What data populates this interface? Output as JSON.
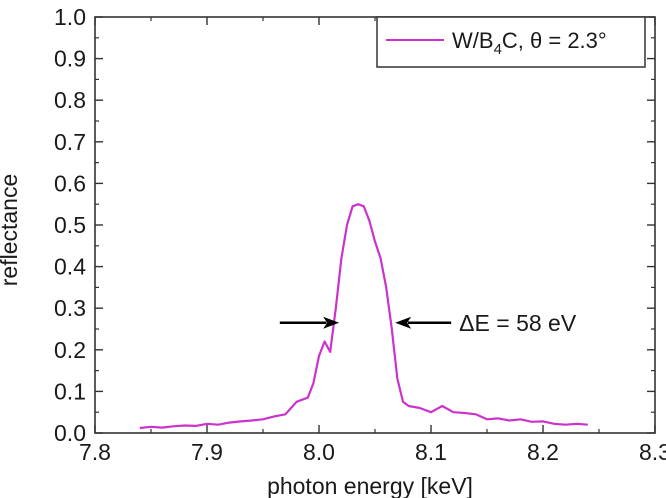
{
  "chart_data": {
    "type": "line",
    "xlabel": "photon energy [keV]",
    "ylabel": "reflectance",
    "xlim": [
      7.8,
      8.3
    ],
    "ylim": [
      0.0,
      1.0
    ],
    "xticks": [
      "7.8",
      "7.9",
      "8.0",
      "8.1",
      "8.2",
      "8.3"
    ],
    "yticks": [
      "0.0",
      "0.1",
      "0.2",
      "0.3",
      "0.4",
      "0.5",
      "0.6",
      "0.7",
      "0.8",
      "0.9",
      "1.0"
    ],
    "grid": false,
    "legend_position": "top-right",
    "legend": {
      "text_main": "W/B",
      "text_sub": "4",
      "text_rest": "C, θ = 2.3°"
    },
    "series": [
      {
        "name": "W/B4C, θ = 2.3°",
        "color": "#cc33cc",
        "x": [
          7.84,
          7.85,
          7.86,
          7.87,
          7.88,
          7.89,
          7.9,
          7.91,
          7.92,
          7.93,
          7.94,
          7.95,
          7.96,
          7.97,
          7.975,
          7.98,
          7.985,
          7.99,
          7.995,
          8.0,
          8.005,
          8.01,
          8.015,
          8.02,
          8.025,
          8.03,
          8.035,
          8.04,
          8.045,
          8.05,
          8.055,
          8.06,
          8.065,
          8.07,
          8.075,
          8.08,
          8.09,
          8.1,
          8.11,
          8.12,
          8.13,
          8.14,
          8.15,
          8.16,
          8.17,
          8.18,
          8.19,
          8.2,
          8.21,
          8.22,
          8.23,
          8.24
        ],
        "y": [
          0.012,
          0.015,
          0.013,
          0.016,
          0.018,
          0.017,
          0.022,
          0.02,
          0.025,
          0.028,
          0.03,
          0.033,
          0.04,
          0.045,
          0.06,
          0.075,
          0.08,
          0.085,
          0.12,
          0.185,
          0.22,
          0.195,
          0.3,
          0.42,
          0.5,
          0.545,
          0.55,
          0.545,
          0.51,
          0.46,
          0.42,
          0.35,
          0.25,
          0.13,
          0.075,
          0.065,
          0.06,
          0.05,
          0.065,
          0.05,
          0.048,
          0.045,
          0.033,
          0.035,
          0.03,
          0.033,
          0.027,
          0.028,
          0.022,
          0.02,
          0.022,
          0.02
        ]
      }
    ],
    "annotation": {
      "text": "ΔE = 58 eV",
      "y": 0.265,
      "x_left_arrow_start": 7.965,
      "x_left_arrow_end": 8.018,
      "x_right_arrow_start": 8.118,
      "x_right_arrow_end": 8.068
    }
  }
}
